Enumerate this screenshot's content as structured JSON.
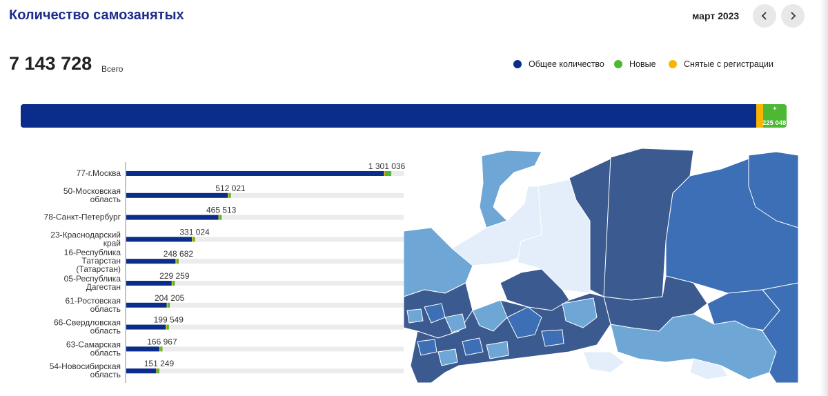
{
  "header": {
    "title": "Количество самозанятых",
    "period": "март 2023"
  },
  "summary": {
    "total": "7 143 728",
    "total_label": "Всего",
    "new_label": "+",
    "new_value": "225 048"
  },
  "legend": [
    {
      "label": "Общее количество",
      "color": "#0a2d8c"
    },
    {
      "label": "Новые",
      "color": "#4cb834"
    },
    {
      "label": "Снятые с регистрации",
      "color": "#f7b500"
    }
  ],
  "colors": {
    "total": "#0a2d8c",
    "new": "#4cb834",
    "removed": "#f7b500",
    "track": "#ececec",
    "title": "#1d2d8c",
    "map_dark": "#3b5a8f",
    "map_mid": "#3c6fb5",
    "map_light": "#6ea6d6",
    "map_pale": "#e3eefa"
  },
  "chart_data": {
    "type": "bar",
    "orientation": "horizontal",
    "categories": [
      [
        "77-г.Москва"
      ],
      [
        "50-Московская",
        "область"
      ],
      [
        "78-Санкт-Петербург"
      ],
      [
        "23-Краснодарский",
        "край"
      ],
      [
        "16-Республика",
        "Татарстан",
        "(Татарстан)"
      ],
      [
        "05-Республика",
        "Дагестан"
      ],
      [
        "61-Ростовская",
        "область"
      ],
      [
        "66-Свердловская",
        "область"
      ],
      [
        "63-Самарская",
        "область"
      ],
      [
        "54-Новосибирская",
        "область"
      ]
    ],
    "values": [
      1301036,
      512021,
      465513,
      331024,
      248682,
      229259,
      204205,
      199549,
      166967,
      151249
    ],
    "value_labels": [
      "1 301 036",
      "512 021",
      "465 513",
      "331 024",
      "248 682",
      "229 259",
      "204 205",
      "199 549",
      "166 967",
      "151 249"
    ],
    "xlim": [
      0,
      1400000
    ],
    "summary_bar": {
      "total": 7143728,
      "new": 225048
    }
  }
}
